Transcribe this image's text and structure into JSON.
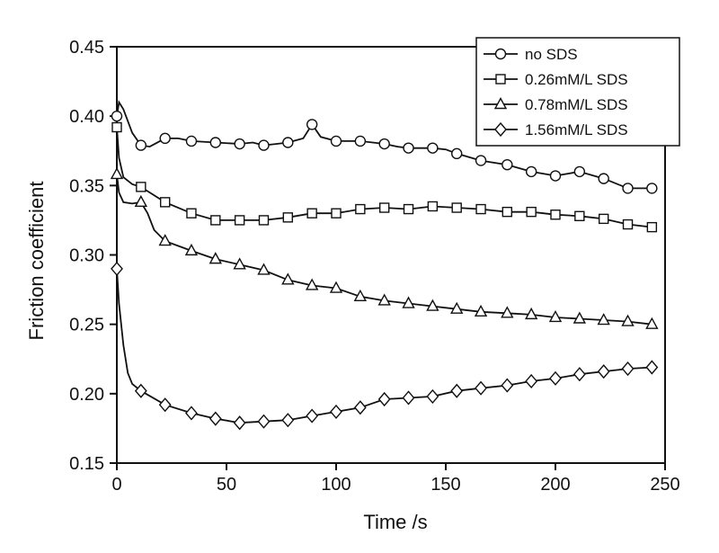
{
  "chart_data": {
    "type": "line",
    "title": "",
    "xlabel": "Time /s",
    "ylabel": "Friction coefficient",
    "xlim": [
      0,
      250
    ],
    "ylim": [
      0.15,
      0.45
    ],
    "xticks": [
      "0",
      "50",
      "100",
      "150",
      "200",
      "250"
    ],
    "yticks": [
      "0.15",
      "0.20",
      "0.25",
      "0.30",
      "0.35",
      "0.40",
      "0.45"
    ],
    "grid": false,
    "legend_position": "top-right",
    "series": [
      {
        "name": "no SDS",
        "marker": "circle",
        "color": "#111111",
        "x": [
          0,
          1,
          3,
          7,
          11,
          15,
          22,
          28,
          34,
          45,
          56,
          62,
          67,
          73,
          78,
          85,
          89,
          93,
          100,
          111,
          122,
          128,
          133,
          144,
          150,
          155,
          166,
          178,
          189,
          200,
          211,
          222,
          233,
          244
        ],
        "y": [
          0.4,
          0.41,
          0.405,
          0.388,
          0.379,
          0.378,
          0.384,
          0.384,
          0.382,
          0.381,
          0.38,
          0.381,
          0.379,
          0.38,
          0.381,
          0.384,
          0.394,
          0.385,
          0.382,
          0.382,
          0.38,
          0.378,
          0.377,
          0.377,
          0.376,
          0.373,
          0.368,
          0.365,
          0.36,
          0.357,
          0.36,
          0.355,
          0.348,
          0.348
        ],
        "markers_x": [
          0,
          11,
          22,
          34,
          45,
          56,
          67,
          78,
          89,
          100,
          111,
          122,
          133,
          144,
          155,
          166,
          178,
          189,
          200,
          211,
          222,
          233,
          244
        ],
        "markers_y": [
          0.4,
          0.379,
          0.384,
          0.382,
          0.381,
          0.38,
          0.379,
          0.381,
          0.394,
          0.382,
          0.382,
          0.38,
          0.377,
          0.377,
          0.373,
          0.368,
          0.365,
          0.36,
          0.357,
          0.36,
          0.355,
          0.348,
          0.348
        ]
      },
      {
        "name": "0.26mM/L SDS",
        "marker": "square",
        "color": "#111111",
        "x": [
          0,
          1,
          3,
          7,
          11,
          22,
          34,
          45,
          56,
          67,
          78,
          89,
          100,
          111,
          122,
          133,
          144,
          155,
          166,
          178,
          189,
          200,
          211,
          222,
          233,
          244
        ],
        "y": [
          0.392,
          0.37,
          0.356,
          0.351,
          0.349,
          0.338,
          0.33,
          0.325,
          0.325,
          0.325,
          0.327,
          0.33,
          0.33,
          0.333,
          0.334,
          0.333,
          0.335,
          0.334,
          0.333,
          0.331,
          0.331,
          0.329,
          0.328,
          0.326,
          0.322,
          0.32
        ],
        "markers_x": [
          0,
          11,
          22,
          34,
          45,
          56,
          67,
          78,
          89,
          100,
          111,
          122,
          133,
          144,
          155,
          166,
          178,
          189,
          200,
          211,
          222,
          233,
          244
        ],
        "markers_y": [
          0.392,
          0.349,
          0.338,
          0.33,
          0.325,
          0.325,
          0.325,
          0.327,
          0.33,
          0.33,
          0.333,
          0.334,
          0.333,
          0.335,
          0.334,
          0.333,
          0.331,
          0.331,
          0.329,
          0.328,
          0.326,
          0.322,
          0.32
        ]
      },
      {
        "name": "0.78mM/L SDS",
        "marker": "triangle",
        "color": "#111111",
        "x": [
          0,
          1,
          3,
          7,
          11,
          14,
          17,
          22,
          34,
          45,
          56,
          67,
          78,
          89,
          100,
          111,
          122,
          133,
          144,
          155,
          166,
          178,
          189,
          200,
          211,
          222,
          233,
          244
        ],
        "y": [
          0.358,
          0.345,
          0.338,
          0.337,
          0.338,
          0.33,
          0.318,
          0.31,
          0.303,
          0.297,
          0.293,
          0.289,
          0.282,
          0.278,
          0.276,
          0.27,
          0.267,
          0.265,
          0.263,
          0.261,
          0.259,
          0.258,
          0.257,
          0.255,
          0.254,
          0.253,
          0.252,
          0.25
        ],
        "markers_x": [
          0,
          11,
          22,
          34,
          45,
          56,
          67,
          78,
          89,
          100,
          111,
          122,
          133,
          144,
          155,
          166,
          178,
          189,
          200,
          211,
          222,
          233,
          244
        ],
        "markers_y": [
          0.358,
          0.338,
          0.31,
          0.303,
          0.297,
          0.293,
          0.289,
          0.282,
          0.278,
          0.276,
          0.27,
          0.267,
          0.265,
          0.263,
          0.261,
          0.259,
          0.258,
          0.257,
          0.255,
          0.254,
          0.253,
          0.252,
          0.25
        ]
      },
      {
        "name": "1.56mM/L SDS",
        "marker": "diamond",
        "color": "#111111",
        "x": [
          0,
          1,
          3,
          5,
          7,
          11,
          22,
          34,
          45,
          56,
          67,
          78,
          89,
          100,
          111,
          122,
          133,
          144,
          155,
          166,
          178,
          189,
          200,
          211,
          222,
          233,
          244
        ],
        "y": [
          0.29,
          0.265,
          0.235,
          0.215,
          0.207,
          0.202,
          0.192,
          0.186,
          0.182,
          0.179,
          0.18,
          0.181,
          0.184,
          0.187,
          0.19,
          0.196,
          0.197,
          0.198,
          0.202,
          0.204,
          0.206,
          0.209,
          0.211,
          0.214,
          0.216,
          0.218,
          0.219
        ],
        "markers_x": [
          0,
          11,
          22,
          34,
          45,
          56,
          67,
          78,
          89,
          100,
          111,
          122,
          133,
          144,
          155,
          166,
          178,
          189,
          200,
          211,
          222,
          233,
          244
        ],
        "markers_y": [
          0.29,
          0.202,
          0.192,
          0.186,
          0.182,
          0.179,
          0.18,
          0.181,
          0.184,
          0.187,
          0.19,
          0.196,
          0.197,
          0.198,
          0.202,
          0.204,
          0.206,
          0.209,
          0.211,
          0.214,
          0.216,
          0.218,
          0.219
        ]
      }
    ]
  }
}
